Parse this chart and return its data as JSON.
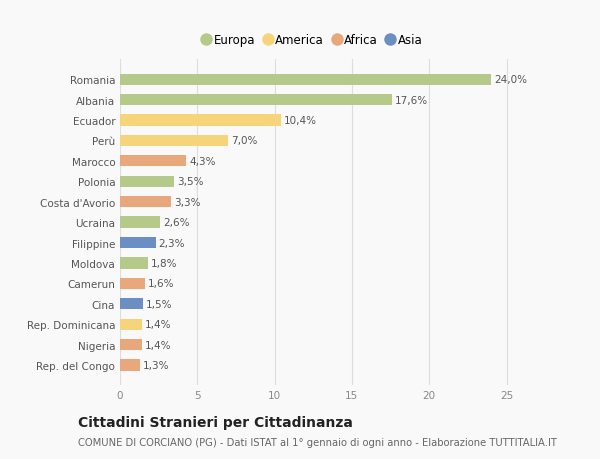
{
  "categories": [
    "Romania",
    "Albania",
    "Ecuador",
    "Perù",
    "Marocco",
    "Polonia",
    "Costa d'Avorio",
    "Ucraina",
    "Filippine",
    "Moldova",
    "Camerun",
    "Cina",
    "Rep. Dominicana",
    "Nigeria",
    "Rep. del Congo"
  ],
  "values": [
    24.0,
    17.6,
    10.4,
    7.0,
    4.3,
    3.5,
    3.3,
    2.6,
    2.3,
    1.8,
    1.6,
    1.5,
    1.4,
    1.4,
    1.3
  ],
  "labels": [
    "24,0%",
    "17,6%",
    "10,4%",
    "7,0%",
    "4,3%",
    "3,5%",
    "3,3%",
    "2,6%",
    "2,3%",
    "1,8%",
    "1,6%",
    "1,5%",
    "1,4%",
    "1,4%",
    "1,3%"
  ],
  "continents": [
    "Europa",
    "Europa",
    "America",
    "America",
    "Africa",
    "Europa",
    "Africa",
    "Europa",
    "Asia",
    "Europa",
    "Africa",
    "Asia",
    "America",
    "Africa",
    "Africa"
  ],
  "continent_colors": {
    "Europa": "#b5c98a",
    "America": "#f5d47a",
    "Africa": "#e8a87c",
    "Asia": "#6b8fc2"
  },
  "legend_order": [
    "Europa",
    "America",
    "Africa",
    "Asia"
  ],
  "xlim": [
    0,
    26
  ],
  "xticks": [
    0,
    5,
    10,
    15,
    20,
    25
  ],
  "title": "Cittadini Stranieri per Cittadinanza",
  "subtitle": "COMUNE DI CORCIANO (PG) - Dati ISTAT al 1° gennaio di ogni anno - Elaborazione TUTTITALIA.IT",
  "background_color": "#f9f9f9",
  "bar_height": 0.55,
  "label_fontsize": 7.5,
  "tick_fontsize": 7.5,
  "title_fontsize": 10,
  "subtitle_fontsize": 7.2
}
